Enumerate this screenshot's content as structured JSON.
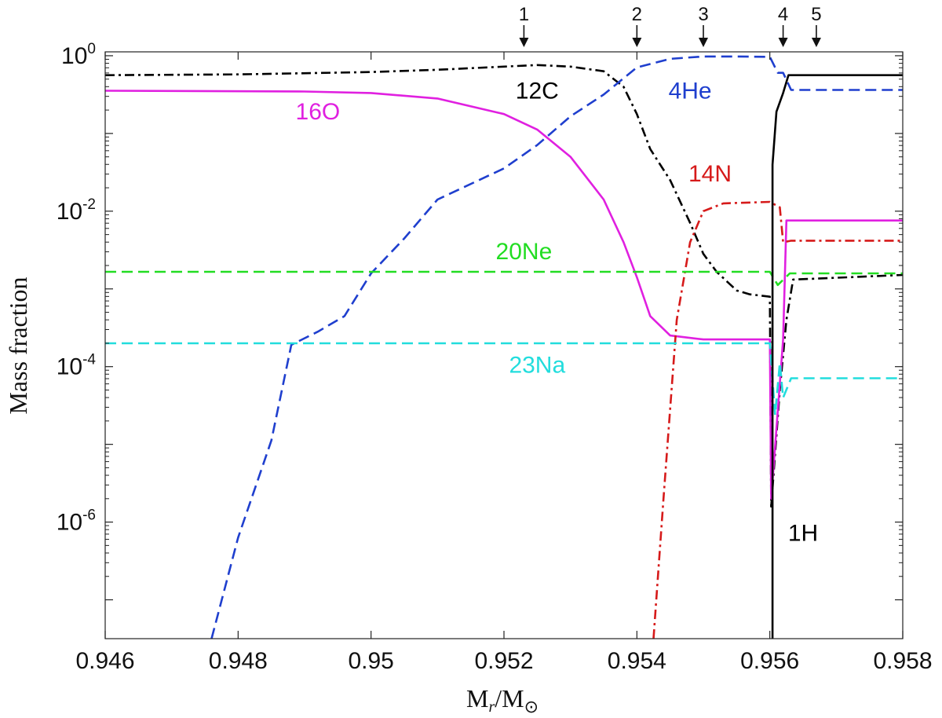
{
  "chart_data": {
    "type": "line",
    "xlabel": "M_r/M_⊙",
    "ylabel": "Mass fraction",
    "xlim": [
      0.946,
      0.958
    ],
    "ylim_log10": [
      -7.5,
      0.05
    ],
    "yscale": "log",
    "grid": false,
    "legend": "none",
    "x_ticks": [
      "0.946",
      "0.948",
      "0.95",
      "0.952",
      "0.954",
      "0.956",
      "0.958"
    ],
    "x_tick_values": [
      0.946,
      0.948,
      0.95,
      0.952,
      0.954,
      0.956,
      0.958
    ],
    "y_ticks": [
      {
        "base": "10",
        "exp": "0",
        "value": 0
      },
      {
        "base": "10",
        "exp": "-2",
        "value": -2
      },
      {
        "base": "10",
        "exp": "-4",
        "value": -4
      },
      {
        "base": "10",
        "exp": "-6",
        "value": -6
      }
    ],
    "markers": [
      {
        "label": "1",
        "x": 0.9523
      },
      {
        "label": "2",
        "x": 0.954
      },
      {
        "label": "3",
        "x": 0.955
      },
      {
        "label": "4",
        "x": 0.9562
      },
      {
        "label": "5",
        "x": 0.9567
      }
    ],
    "series": [
      {
        "name": "12C",
        "color": "#000000",
        "dash": "dashdot",
        "label_pos": {
          "x": 0.9525,
          "y_log10": -0.55
        },
        "points": [
          [
            0.946,
            -0.25
          ],
          [
            0.948,
            -0.24
          ],
          [
            0.95,
            -0.21
          ],
          [
            0.951,
            -0.18
          ],
          [
            0.952,
            -0.14
          ],
          [
            0.9525,
            -0.12
          ],
          [
            0.953,
            -0.14
          ],
          [
            0.9535,
            -0.2
          ],
          [
            0.9538,
            -0.4
          ],
          [
            0.954,
            -0.75
          ],
          [
            0.9542,
            -1.2
          ],
          [
            0.9545,
            -1.6
          ],
          [
            0.9548,
            -2.15
          ],
          [
            0.955,
            -2.55
          ],
          [
            0.9552,
            -2.78
          ],
          [
            0.9555,
            -3.02
          ],
          [
            0.9557,
            -3.07
          ],
          [
            0.956,
            -3.1
          ],
          [
            0.95602,
            -5.8
          ],
          [
            0.95615,
            -4.3
          ],
          [
            0.95625,
            -3.4
          ],
          [
            0.95635,
            -2.88
          ],
          [
            0.958,
            -2.82
          ]
        ]
      },
      {
        "name": "4He",
        "color": "#1f3fce",
        "dash": "dashed",
        "label_pos": {
          "x": 0.9548,
          "y_log10": -0.55
        },
        "points": [
          [
            0.9476,
            -7.5
          ],
          [
            0.948,
            -6.2
          ],
          [
            0.9485,
            -4.95
          ],
          [
            0.9488,
            -3.72
          ],
          [
            0.9492,
            -3.55
          ],
          [
            0.9496,
            -3.35
          ],
          [
            0.95,
            -2.8
          ],
          [
            0.9505,
            -2.35
          ],
          [
            0.951,
            -1.85
          ],
          [
            0.952,
            -1.45
          ],
          [
            0.9525,
            -1.15
          ],
          [
            0.953,
            -0.78
          ],
          [
            0.9535,
            -0.5
          ],
          [
            0.954,
            -0.15
          ],
          [
            0.9545,
            -0.04
          ],
          [
            0.955,
            -0.01
          ],
          [
            0.9555,
            -0.01
          ],
          [
            0.956,
            -0.015
          ],
          [
            0.95612,
            -0.22
          ],
          [
            0.9562,
            -0.22
          ],
          [
            0.95632,
            -0.44
          ],
          [
            0.958,
            -0.44
          ]
        ]
      },
      {
        "name": "16O",
        "color": "#e020e0",
        "dash": "solid",
        "label_pos": {
          "x": 0.9492,
          "y_log10": -0.82
        },
        "points": [
          [
            0.946,
            -0.45
          ],
          [
            0.949,
            -0.46
          ],
          [
            0.95,
            -0.48
          ],
          [
            0.951,
            -0.55
          ],
          [
            0.952,
            -0.75
          ],
          [
            0.9525,
            -0.95
          ],
          [
            0.953,
            -1.3
          ],
          [
            0.9535,
            -1.85
          ],
          [
            0.9538,
            -2.4
          ],
          [
            0.954,
            -2.85
          ],
          [
            0.9542,
            -3.35
          ],
          [
            0.9545,
            -3.6
          ],
          [
            0.955,
            -3.65
          ],
          [
            0.956,
            -3.65
          ],
          [
            0.95602,
            -5.7
          ],
          [
            0.9562,
            -3.65
          ],
          [
            0.95625,
            -2.12
          ],
          [
            0.958,
            -2.12
          ]
        ]
      },
      {
        "name": "14N",
        "color": "#d61a1a",
        "dash": "dashdot",
        "label_pos": {
          "x": 0.9551,
          "y_log10": -1.62
        },
        "points": [
          [
            0.95425,
            -7.5
          ],
          [
            0.9544,
            -5.7
          ],
          [
            0.9546,
            -3.4
          ],
          [
            0.9548,
            -2.4
          ],
          [
            0.955,
            -2.0
          ],
          [
            0.9553,
            -1.9
          ],
          [
            0.956,
            -1.88
          ],
          [
            0.95615,
            -1.95
          ],
          [
            0.9562,
            -2.4
          ],
          [
            0.95632,
            -2.38
          ],
          [
            0.958,
            -2.38
          ]
        ]
      },
      {
        "name": "20Ne",
        "color": "#22dd22",
        "dash": "dashed",
        "label_pos": {
          "x": 0.9523,
          "y_log10": -2.62
        },
        "points": [
          [
            0.946,
            -2.78
          ],
          [
            0.956,
            -2.78
          ],
          [
            0.95612,
            -2.95
          ],
          [
            0.9563,
            -2.8
          ],
          [
            0.958,
            -2.8
          ]
        ]
      },
      {
        "name": "23Na",
        "color": "#22dddd",
        "dash": "dashed",
        "label_pos": {
          "x": 0.9525,
          "y_log10": -4.08
        },
        "points": [
          [
            0.946,
            -3.7
          ],
          [
            0.956,
            -3.7
          ],
          [
            0.95608,
            -4.62
          ],
          [
            0.95615,
            -3.95
          ],
          [
            0.9562,
            -4.4
          ],
          [
            0.95632,
            -4.15
          ],
          [
            0.958,
            -4.15
          ]
        ]
      },
      {
        "name": "1H",
        "color": "#000000",
        "dash": "solid",
        "label_pos": {
          "x": 0.9565,
          "y_log10": -6.24
        },
        "points": [
          [
            0.95604,
            -7.5
          ],
          [
            0.95604,
            -1.4
          ],
          [
            0.9561,
            -0.72
          ],
          [
            0.9562,
            -0.48
          ],
          [
            0.95628,
            -0.25
          ],
          [
            0.958,
            -0.25
          ]
        ]
      }
    ]
  }
}
